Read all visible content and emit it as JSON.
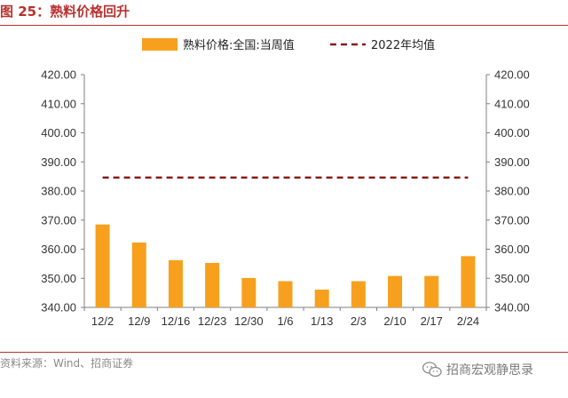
{
  "figure": {
    "title": "图 25：熟料价格回升",
    "source": "资料来源：Wind、招商证券",
    "watermark": "招商宏观静思录"
  },
  "colors": {
    "title": "#b8312f",
    "bar": "#f7a01d",
    "avg_line": "#8b1a1a",
    "axis": "#7f7f7f"
  },
  "chart_data": {
    "type": "bar",
    "categories": [
      "12/2",
      "12/9",
      "12/16",
      "12/23",
      "12/30",
      "1/6",
      "1/13",
      "2/3",
      "2/10",
      "2/17",
      "2/24"
    ],
    "series": [
      {
        "name": "熟料价格:全国:当周值",
        "type": "bar",
        "values": [
          368.5,
          362.3,
          356.2,
          355.3,
          350.1,
          349.0,
          346.1,
          349.0,
          350.8,
          350.8,
          357.6
        ]
      },
      {
        "name": "2022年均值",
        "type": "line-dashed",
        "values": [
          384.6,
          384.6,
          384.6,
          384.6,
          384.6,
          384.6,
          384.6,
          384.6,
          384.6,
          384.6,
          384.6
        ]
      }
    ],
    "ylim": [
      340,
      420
    ],
    "yticks": [
      "340.00",
      "350.00",
      "360.00",
      "370.00",
      "380.00",
      "390.00",
      "400.00",
      "410.00",
      "420.00"
    ],
    "y2ticks": [
      "340.00",
      "350.00",
      "360.00",
      "370.00",
      "380.00",
      "390.00",
      "400.00",
      "410.00",
      "420.00"
    ],
    "legend_position": "top-center",
    "grid": false
  }
}
